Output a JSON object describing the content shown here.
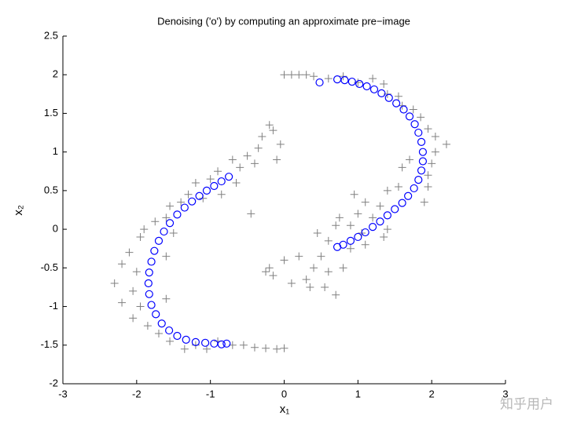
{
  "chart_data": {
    "type": "scatter",
    "title": "Denoising ('o') by computing an approximate pre−image",
    "xlabel": "x₁",
    "ylabel": "x₂",
    "xlim": [
      -3,
      3
    ],
    "ylim": [
      -2,
      2.5
    ],
    "xticks": [
      -3,
      -2,
      -1,
      0,
      1,
      2,
      3
    ],
    "yticks": [
      -2,
      -1.5,
      -1,
      -0.5,
      0,
      0.5,
      1,
      1.5,
      2,
      2.5
    ],
    "watermark": "知乎用户",
    "series": [
      {
        "marker": "+",
        "color": "#808080",
        "x": [
          -0.2,
          -0.15,
          -0.05,
          -0.1,
          -0.3,
          -0.35,
          -0.4,
          -0.5,
          -0.6,
          -0.65,
          -0.45,
          -0.7,
          -0.9,
          -0.85,
          -1.0,
          -1.1,
          -1.2,
          -1.3,
          -1.4,
          -1.55,
          -1.6,
          -1.75,
          -1.9,
          -1.95,
          -1.5,
          -1.6,
          -2.1,
          -2.2,
          -2.0,
          -2.3,
          -2.05,
          -2.2,
          -1.95,
          -1.6,
          -2.05,
          -1.85,
          -1.7,
          -1.55,
          -1.35,
          -1.2,
          -1.05,
          -0.9,
          -0.7,
          -0.55,
          -0.4,
          -0.25,
          -0.1,
          0.0,
          -0.2,
          -0.15,
          -0.25,
          0.0,
          0.1,
          0.2,
          0.3,
          0.4,
          0.6,
          0.8,
          1.0,
          1.2,
          1.35,
          1.4,
          1.55,
          1.6,
          1.75,
          1.85,
          1.95,
          2.05,
          2.2,
          2.05,
          2.0,
          1.7,
          1.6,
          1.95,
          1.95,
          1.9,
          1.55,
          1.4,
          1.3,
          1.1,
          1.0,
          1.2,
          0.9,
          1.4,
          1.35,
          0.7,
          0.6,
          0.45,
          0.9,
          1.1,
          0.5,
          0.2,
          0.4,
          0.3,
          0.6,
          0.8,
          0.55,
          0.7,
          0.35,
          0.0,
          0.1,
          1.05,
          0.95,
          0.75
        ],
        "y": [
          1.35,
          1.28,
          1.1,
          0.9,
          1.2,
          1.05,
          0.85,
          0.95,
          0.8,
          0.6,
          0.2,
          0.9,
          0.75,
          0.45,
          0.65,
          0.4,
          0.6,
          0.45,
          0.35,
          0.3,
          0.15,
          0.1,
          0.0,
          -0.1,
          -0.05,
          -0.35,
          -0.3,
          -0.45,
          -0.55,
          -0.7,
          -0.8,
          -0.95,
          -1.0,
          -0.9,
          -1.15,
          -1.25,
          -1.35,
          -1.45,
          -1.55,
          -1.5,
          -1.55,
          -1.45,
          -1.5,
          -1.5,
          -1.53,
          -1.54,
          -1.55,
          -1.54,
          -0.5,
          -0.6,
          -0.55,
          2.0,
          2.0,
          2.0,
          2.0,
          1.98,
          1.95,
          1.98,
          1.9,
          1.95,
          1.88,
          1.75,
          1.72,
          1.6,
          1.55,
          1.45,
          1.3,
          1.2,
          1.1,
          1.0,
          0.85,
          0.9,
          0.8,
          0.7,
          0.55,
          0.35,
          0.55,
          0.5,
          0.3,
          0.35,
          0.2,
          0.15,
          0.05,
          0.0,
          -0.1,
          0.05,
          -0.15,
          -0.05,
          -0.25,
          -0.2,
          -0.35,
          -0.35,
          -0.5,
          -0.65,
          -0.55,
          -0.5,
          -0.75,
          -0.85,
          -0.75,
          -0.4,
          -0.7,
          -0.05,
          0.45,
          0.15
        ]
      },
      {
        "marker": "o",
        "color": "#0000ff",
        "x": [
          -0.75,
          -0.85,
          -0.95,
          -1.05,
          -1.15,
          -1.25,
          -1.35,
          -1.45,
          -1.55,
          -1.63,
          -1.7,
          -1.76,
          -1.8,
          -1.83,
          -1.84,
          -1.83,
          -1.8,
          -1.74,
          -1.66,
          -1.56,
          -1.45,
          -1.33,
          -1.2,
          -1.07,
          -0.95,
          -0.85,
          -0.78,
          0.72,
          0.82,
          0.92,
          1.02,
          1.12,
          1.22,
          1.32,
          1.42,
          1.52,
          1.62,
          1.7,
          1.77,
          1.82,
          1.86,
          1.88,
          1.88,
          1.86,
          1.82,
          1.76,
          1.68,
          1.6,
          1.5,
          1.4,
          1.3,
          1.2,
          1.1,
          1.0,
          0.9,
          0.8,
          0.72,
          0.48
        ],
        "y": [
          0.68,
          0.62,
          0.56,
          0.5,
          0.43,
          0.36,
          0.28,
          0.19,
          0.08,
          -0.03,
          -0.15,
          -0.28,
          -0.42,
          -0.56,
          -0.7,
          -0.84,
          -0.98,
          -1.1,
          -1.22,
          -1.31,
          -1.38,
          -1.43,
          -1.46,
          -1.47,
          -1.48,
          -1.49,
          -1.48,
          1.94,
          1.93,
          1.91,
          1.88,
          1.85,
          1.81,
          1.76,
          1.7,
          1.63,
          1.55,
          1.46,
          1.36,
          1.25,
          1.13,
          1.0,
          0.88,
          0.76,
          0.64,
          0.53,
          0.43,
          0.34,
          0.26,
          0.18,
          0.1,
          0.03,
          -0.04,
          -0.1,
          -0.15,
          -0.2,
          -0.23,
          1.9
        ]
      }
    ]
  }
}
